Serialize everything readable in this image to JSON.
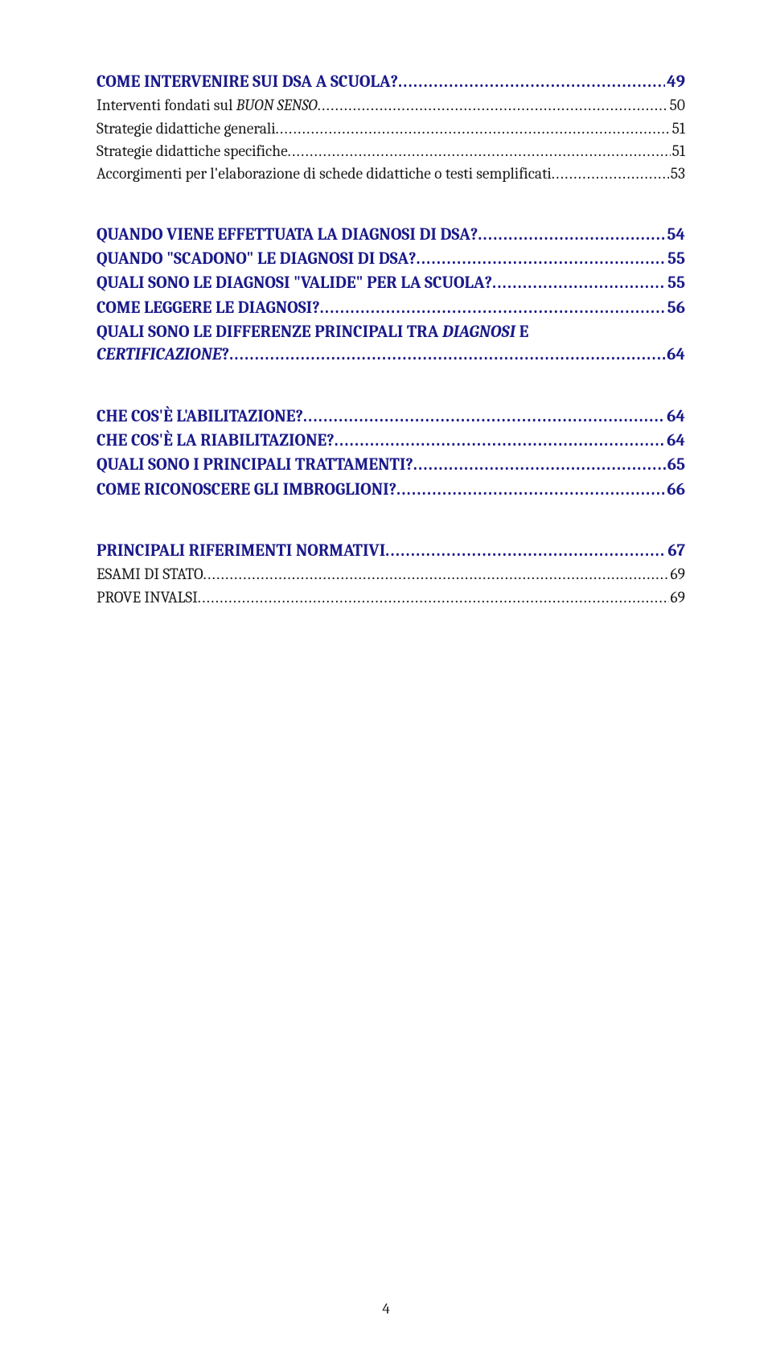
{
  "colors": {
    "heading": "#1a1a8a",
    "sub": "#1a1a1a",
    "background": "#ffffff"
  },
  "typography": {
    "heading_fontsize_pt": 16,
    "sub_fontsize_pt": 15,
    "font_family": "Cambria / Georgia serif",
    "heading_weight": "bold",
    "sub_weight": "normal"
  },
  "page_number": "4",
  "groups": [
    {
      "entries": [
        {
          "level": "h",
          "label": "COME INTERVENIRE SUI DSA A SCUOLA?",
          "page": "49"
        },
        {
          "level": "s",
          "label": "Interventi fondati sul ",
          "label_em": "BUON SENSO",
          "page": "50"
        },
        {
          "level": "s",
          "label": "Strategie didattiche generali",
          "page": "51"
        },
        {
          "level": "s",
          "label": "Strategie didattiche specifiche",
          "page": "51"
        },
        {
          "level": "s",
          "label": "Accorgimenti per l'elaborazione di schede didattiche o testi semplificati",
          "page": "53"
        }
      ]
    },
    {
      "entries": [
        {
          "level": "h",
          "label": "QUANDO VIENE EFFETTUATA LA DIAGNOSI DI DSA?",
          "page": "54"
        },
        {
          "level": "h",
          "label": "QUANDO \"SCADONO\" LE DIAGNOSI DI DSA?",
          "page": "55"
        },
        {
          "level": "h",
          "label": "QUALI SONO LE DIAGNOSI \"VALIDE\" PER LA SCUOLA?",
          "page": "55"
        },
        {
          "level": "h",
          "label": "COME LEGGERE LE DIAGNOSI?",
          "page": "56"
        },
        {
          "level": "h",
          "multiline": true,
          "label_line1": "QUALI SONO LE DIFFERENZE PRINCIPALI TRA ",
          "label_line1_em": "DIAGNOSI",
          "label_line1_tail": " E",
          "label_line2_em": "CERTIFICAZIONE",
          "label_line2_tail": "?",
          "page": "64"
        }
      ]
    },
    {
      "entries": [
        {
          "level": "h",
          "label": "CHE COS'È L'ABILITAZIONE?",
          "page": "64"
        },
        {
          "level": "h",
          "label": "CHE COS'È LA RIABILITAZIONE?",
          "page": "64"
        },
        {
          "level": "h",
          "label": "QUALI SONO I PRINCIPALI TRATTAMENTI?",
          "page": "65"
        },
        {
          "level": "h",
          "label": "COME RICONOSCERE GLI IMBROGLIONI?",
          "page": "66"
        }
      ]
    },
    {
      "entries": [
        {
          "level": "h",
          "label": "PRINCIPALI RIFERIMENTI NORMATIVI",
          "page": "67"
        },
        {
          "level": "s",
          "label": "ESAMI DI STATO",
          "page": "69"
        },
        {
          "level": "s",
          "label": "PROVE INVALSI",
          "page": "69"
        }
      ]
    }
  ]
}
